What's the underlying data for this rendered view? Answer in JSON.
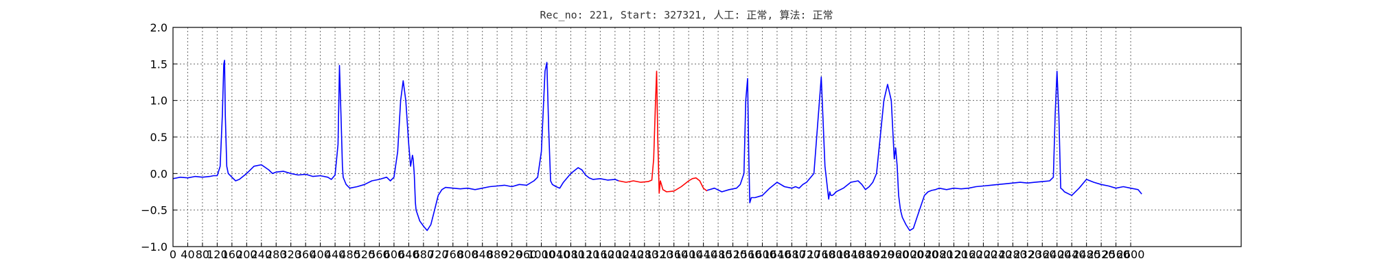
{
  "title": "Rec_no: 221, Start: 327321, 人工: 正常, 算法: 正常",
  "colors": {
    "normal": "#0000ff",
    "highlight": "#ff0000",
    "frame": "#000000",
    "grid": "#666666"
  },
  "chart_data": {
    "type": "line",
    "title": "Rec_no: 221, Start: 327321, 人工: 正常, 算法: 正常",
    "xlabel": "",
    "ylabel": "",
    "xlim": [
      0,
      2900
    ],
    "ylim": [
      -1.0,
      2.0
    ],
    "grid": true,
    "yticks": [
      2.0,
      1.5,
      1.0,
      0.5,
      0.0,
      -0.5,
      -1.0
    ],
    "ytick_labels": [
      "2.0",
      "1.5",
      "1.0",
      "0.5",
      "0.0",
      "−0.5",
      "−1.0"
    ],
    "xticks": [
      0,
      40,
      80,
      120,
      160,
      200,
      240,
      280,
      320,
      360,
      400,
      440,
      480,
      520,
      560,
      600,
      640,
      680,
      720,
      760,
      800,
      840,
      880,
      920,
      960,
      1000,
      1040,
      1080,
      1120,
      1160,
      1200,
      1240,
      1280,
      1320,
      1360,
      1400,
      1440,
      1480,
      1520,
      1560,
      1600,
      1640,
      1680,
      1720,
      1760,
      1800,
      1840,
      1880,
      1920,
      1960,
      2000,
      2040,
      2080,
      2120,
      2160,
      2200,
      2240,
      2280,
      2320,
      2360,
      2400,
      2440,
      2480,
      2520,
      2560,
      2600
    ],
    "series": [
      {
        "color": "#0000ff",
        "x": [
          0,
          20,
          40,
          60,
          80,
          100,
          110,
          120,
          128,
          134,
          138,
          140,
          142,
          146,
          150,
          160,
          170,
          180,
          200,
          220,
          240,
          260,
          270,
          280,
          300,
          320,
          340,
          360,
          380,
          400,
          420,
          430,
          440,
          448,
          452,
          456,
          460,
          462,
          466,
          470,
          480,
          500,
          520,
          540,
          560,
          580,
          590,
          600,
          610,
          618,
          625,
          632,
          640,
          645,
          650,
          652,
          655,
          658,
          660,
          670,
          680,
          690,
          700,
          710,
          720,
          730,
          740,
          760,
          780,
          800,
          820,
          840,
          860,
          880,
          900,
          920,
          940,
          960,
          980,
          990,
          1000,
          1010,
          1015,
          1020,
          1025,
          1030,
          1040,
          1050,
          1060,
          1080,
          1100,
          1110,
          1120,
          1130,
          1140,
          1160,
          1180,
          1200,
          1210
        ],
        "y": [
          -0.07,
          -0.05,
          -0.06,
          -0.04,
          -0.05,
          -0.04,
          -0.03,
          -0.03,
          0.1,
          0.8,
          1.5,
          1.55,
          0.8,
          0.1,
          0.0,
          -0.05,
          -0.1,
          -0.08,
          0.0,
          0.1,
          0.12,
          0.05,
          0.0,
          0.02,
          0.03,
          0.0,
          -0.02,
          -0.01,
          -0.04,
          -0.03,
          -0.05,
          -0.08,
          -0.02,
          0.4,
          1.48,
          0.8,
          0.1,
          -0.05,
          -0.1,
          -0.15,
          -0.2,
          -0.18,
          -0.15,
          -0.1,
          -0.08,
          -0.05,
          -0.1,
          -0.05,
          0.3,
          1.0,
          1.27,
          1.0,
          0.4,
          0.1,
          0.25,
          0.2,
          0.0,
          -0.4,
          -0.5,
          -0.65,
          -0.72,
          -0.78,
          -0.7,
          -0.5,
          -0.3,
          -0.22,
          -0.19,
          -0.2,
          -0.21,
          -0.2,
          -0.22,
          -0.2,
          -0.18,
          -0.17,
          -0.16,
          -0.18,
          -0.15,
          -0.16,
          -0.1,
          -0.05,
          0.3,
          1.4,
          1.52,
          0.6,
          -0.1,
          -0.15,
          -0.18,
          -0.2,
          -0.12,
          0.0,
          0.08,
          0.05,
          -0.02,
          -0.06,
          -0.08,
          -0.07,
          -0.09,
          -0.08,
          -0.1
        ]
      },
      {
        "color": "#ff0000",
        "x": [
          1210,
          1230,
          1250,
          1270,
          1290,
          1300,
          1305,
          1310,
          1313,
          1316,
          1320,
          1323,
          1326,
          1330,
          1340,
          1360,
          1380,
          1400,
          1410,
          1420,
          1430,
          1440,
          1450
        ],
        "y": [
          -0.1,
          -0.12,
          -0.1,
          -0.12,
          -0.11,
          -0.09,
          0.2,
          1.0,
          1.4,
          0.5,
          -0.27,
          -0.1,
          -0.15,
          -0.22,
          -0.25,
          -0.24,
          -0.18,
          -0.1,
          -0.07,
          -0.06,
          -0.1,
          -0.2,
          -0.24
        ]
      },
      {
        "color": "#0000ff",
        "x": [
          1450,
          1470,
          1490,
          1510,
          1530,
          1540,
          1550,
          1555,
          1560,
          1563,
          1566,
          1570,
          1580,
          1600,
          1620,
          1640,
          1660,
          1680,
          1690,
          1700,
          1710,
          1720,
          1740,
          1760,
          1770,
          1780,
          1783,
          1786,
          1790,
          1795,
          1800,
          1820,
          1840,
          1860,
          1870,
          1880,
          1890,
          1900,
          1910,
          1920,
          1930,
          1940,
          1950,
          1955,
          1958,
          1962,
          1966,
          1970,
          1975,
          1980,
          1990,
          2000,
          2010,
          2020,
          2030,
          2040,
          2050,
          2060,
          2070,
          2080,
          2100,
          2120,
          2140,
          2160,
          2180,
          2200,
          2220,
          2240,
          2260,
          2280,
          2300,
          2320,
          2340,
          2360,
          2380,
          2390,
          2395,
          2400,
          2405,
          2410,
          2415,
          2420,
          2440,
          2460,
          2480,
          2500,
          2520,
          2540,
          2560,
          2580,
          2600,
          2620,
          2630
        ],
        "y": [
          -0.23,
          -0.2,
          -0.25,
          -0.22,
          -0.2,
          -0.15,
          0.0,
          1.0,
          1.3,
          0.3,
          -0.4,
          -0.33,
          -0.33,
          -0.3,
          -0.2,
          -0.12,
          -0.18,
          -0.2,
          -0.18,
          -0.2,
          -0.15,
          -0.12,
          0.0,
          1.32,
          0.1,
          -0.35,
          -0.25,
          -0.3,
          -0.3,
          -0.28,
          -0.25,
          -0.2,
          -0.12,
          -0.1,
          -0.15,
          -0.22,
          -0.18,
          -0.12,
          0.0,
          0.5,
          1.0,
          1.22,
          1.0,
          0.5,
          0.2,
          0.35,
          0.1,
          -0.3,
          -0.5,
          -0.6,
          -0.7,
          -0.78,
          -0.75,
          -0.6,
          -0.45,
          -0.3,
          -0.25,
          -0.23,
          -0.22,
          -0.2,
          -0.22,
          -0.2,
          -0.21,
          -0.2,
          -0.18,
          -0.17,
          -0.16,
          -0.15,
          -0.14,
          -0.13,
          -0.12,
          -0.13,
          -0.12,
          -0.11,
          -0.1,
          -0.05,
          0.8,
          1.4,
          0.8,
          -0.2,
          -0.22,
          -0.25,
          -0.3,
          -0.2,
          -0.08,
          -0.12,
          -0.15,
          -0.17,
          -0.2,
          -0.18,
          -0.2,
          -0.22,
          -0.28
        ]
      }
    ]
  }
}
